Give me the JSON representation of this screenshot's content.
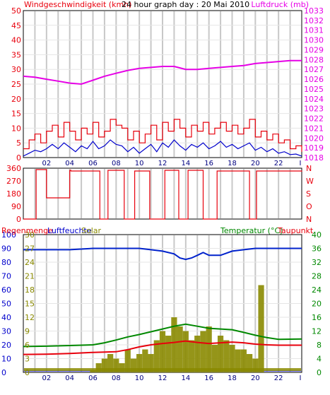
{
  "colors": {
    "wind": "#e8000c",
    "gust_blue": "#0000cc",
    "pressure": "#e600e6",
    "direction": "#e8000c",
    "rain": "#0000ff",
    "humidity": "#0022cc",
    "solar": "#8a8a00",
    "temperature": "#008800",
    "dewpoint": "#e8000c",
    "grid": "#c8c8c8",
    "frame": "#000000"
  },
  "chart_data": [
    {
      "type": "line",
      "title": "24 hour graph day : 20 Mai 2010",
      "left_label": "Windgeschwindigkeit (kmh)",
      "right_label": "Luftdruck (mb)",
      "x_ticks": [
        "02",
        "04",
        "06",
        "08",
        "10",
        "12",
        "14",
        "16",
        "18",
        "20",
        "22"
      ],
      "x_end_tick": "I",
      "xlim": [
        0,
        24
      ],
      "left_axis": {
        "ylim": [
          0,
          50
        ],
        "ticks": [
          "0",
          "5",
          "10",
          "15",
          "20",
          "25",
          "30",
          "35",
          "40",
          "45",
          "50"
        ]
      },
      "right_axis": {
        "ylim": [
          1018,
          1033
        ],
        "ticks": [
          "1018",
          "1019",
          "1020",
          "1021",
          "1022",
          "1023",
          "1024",
          "1025",
          "1026",
          "1027",
          "1028",
          "1029",
          "1030",
          "1031",
          "1032",
          "1033"
        ]
      },
      "series": [
        {
          "key": "wind_max",
          "axis": "left",
          "style": "step",
          "color_key": "wind",
          "x": [
            0,
            0.5,
            1,
            1.5,
            2,
            2.5,
            3,
            3.5,
            4,
            4.5,
            5,
            5.5,
            6,
            6.5,
            7,
            7.5,
            8,
            8.5,
            9,
            9.5,
            10,
            10.5,
            11,
            11.5,
            12,
            12.5,
            13,
            13.5,
            14,
            14.5,
            15,
            15.5,
            16,
            16.5,
            17,
            17.5,
            18,
            18.5,
            19,
            19.5,
            20,
            20.5,
            21,
            21.5,
            22,
            22.5,
            23,
            23.5,
            24
          ],
          "y": [
            3,
            6,
            8,
            5,
            9,
            11,
            7,
            12,
            9,
            6,
            10,
            8,
            12,
            7,
            9,
            13,
            11,
            10,
            6,
            9,
            5,
            8,
            11,
            6,
            12,
            9,
            13,
            10,
            7,
            11,
            9,
            12,
            8,
            10,
            12,
            9,
            11,
            8,
            10,
            13,
            7,
            9,
            6,
            8,
            5,
            6,
            3,
            4,
            2
          ]
        },
        {
          "key": "wind_avg",
          "axis": "left",
          "style": "line",
          "color_key": "gust_blue",
          "x": [
            0,
            0.5,
            1,
            1.5,
            2,
            2.5,
            3,
            3.5,
            4,
            4.5,
            5,
            5.5,
            6,
            6.5,
            7,
            7.5,
            8,
            8.5,
            9,
            9.5,
            10,
            10.5,
            11,
            11.5,
            12,
            12.5,
            13,
            13.5,
            14,
            14.5,
            15,
            15.5,
            16,
            16.5,
            17,
            17.5,
            18,
            18.5,
            19,
            19.5,
            20,
            20.5,
            21,
            21.5,
            22,
            22.5,
            23,
            23.5,
            24
          ],
          "y": [
            0.5,
            1.5,
            2.5,
            2,
            3,
            4.5,
            3,
            5,
            3.5,
            2,
            4,
            3,
            5.5,
            3,
            4,
            6,
            4.5,
            4,
            2,
            3.5,
            1.5,
            3,
            4.5,
            2,
            5,
            3.5,
            6,
            4,
            2.5,
            4.5,
            3.5,
            5,
            3,
            4,
            5.5,
            3.5,
            4.5,
            3,
            4,
            5,
            2.5,
            3.5,
            2,
            3,
            1.5,
            2,
            1,
            1.2,
            0.5
          ]
        },
        {
          "key": "pressure",
          "axis": "right",
          "style": "line",
          "color_key": "pressure",
          "x": [
            0,
            1,
            2,
            3,
            4,
            5,
            6,
            7,
            8,
            9,
            10,
            11,
            12,
            13,
            14,
            15,
            16,
            17,
            18,
            19,
            20,
            21,
            22,
            23,
            24
          ],
          "y": [
            1026.3,
            1026.2,
            1026.0,
            1025.8,
            1025.6,
            1025.5,
            1025.9,
            1026.3,
            1026.6,
            1026.9,
            1027.1,
            1027.2,
            1027.3,
            1027.3,
            1027.0,
            1027.0,
            1027.1,
            1027.2,
            1027.3,
            1027.4,
            1027.6,
            1027.7,
            1027.8,
            1027.9,
            1027.9
          ]
        }
      ]
    },
    {
      "type": "line",
      "left_ticks": [
        "360",
        "270",
        "180",
        "90",
        "0"
      ],
      "right_ticks": [
        "N",
        "W",
        "S",
        "O",
        "N"
      ],
      "ylim": [
        0,
        360
      ],
      "series": [
        {
          "key": "wind_direction",
          "style": "step",
          "color_key": "direction",
          "x": [
            0,
            0.6,
            1.1,
            1.9,
            2.0,
            4.0,
            4.1,
            6.5,
            6.6,
            7.2,
            7.3,
            8.6,
            8.7,
            9.5,
            9.6,
            10.8,
            10.9,
            12.1,
            12.2,
            13.3,
            13.4,
            14.1,
            14.2,
            15.4,
            15.5,
            16.6,
            16.7,
            19.4,
            19.5,
            20.0,
            20.1,
            24
          ],
          "y": [
            0,
            0,
            350,
            350,
            150,
            345,
            340,
            340,
            0,
            0,
            345,
            345,
            0,
            0,
            340,
            340,
            0,
            0,
            345,
            345,
            0,
            0,
            345,
            345,
            0,
            0,
            340,
            340,
            0,
            0,
            340,
            335
          ]
        }
      ]
    },
    {
      "type": "line",
      "left_label_1": "Regenmenge",
      "left_label_2": "Luftfeuchte",
      "left_label_3": "Solar",
      "right_label_1": "Temperatur (°C)",
      "right_label_2": "Taupunkt",
      "x_ticks": [
        "02",
        "04",
        "06",
        "08",
        "10",
        "12",
        "14",
        "16",
        "18",
        "20",
        "22"
      ],
      "x_end_tick": "I",
      "xlim": [
        0,
        24
      ],
      "rain_axis": {
        "ylim": [
          0,
          100
        ],
        "ticks": [
          "0",
          "10",
          "20",
          "30",
          "40",
          "50",
          "60",
          "70",
          "80",
          "90",
          "100"
        ]
      },
      "solar_axis": {
        "ylim": [
          0,
          30
        ],
        "ticks": [
          "0",
          "3",
          "6",
          "9",
          "12",
          "15",
          "18",
          "21",
          "24",
          "27",
          "30"
        ]
      },
      "temp_axis": {
        "ylim": [
          0,
          40
        ],
        "ticks": [
          "0",
          "4",
          "8",
          "12",
          "16",
          "20",
          "24",
          "28",
          "32",
          "36",
          "40"
        ]
      },
      "series": [
        {
          "key": "humidity",
          "axis": "rain",
          "style": "line",
          "color_key": "humidity",
          "x": [
            0,
            2,
            4,
            6,
            8,
            9,
            10,
            11,
            12,
            13,
            13.5,
            14,
            14.5,
            15,
            15.5,
            16,
            17,
            18,
            19,
            20,
            21,
            22,
            24
          ],
          "y": [
            89,
            89,
            89,
            90,
            90,
            90,
            90,
            89,
            88,
            86,
            83,
            82,
            83,
            85,
            87,
            85,
            85,
            88,
            89,
            90,
            90,
            90,
            90
          ]
        },
        {
          "key": "solar",
          "axis": "solar",
          "style": "bars",
          "color_key": "solar",
          "x": [
            6,
            6.5,
            7,
            7.5,
            8,
            8.5,
            9,
            9.5,
            10,
            10.5,
            11,
            11.5,
            12,
            12.5,
            13,
            13.5,
            14,
            14.5,
            15,
            15.5,
            16,
            16.5,
            17,
            17.5,
            18,
            18.5,
            19,
            19.5,
            20,
            20.5
          ],
          "y": [
            0.5,
            2,
            3,
            4,
            3,
            2,
            5,
            3,
            4,
            5,
            4,
            7,
            9,
            8,
            12,
            10,
            9,
            7,
            8,
            9,
            10,
            6,
            8,
            7,
            6,
            5,
            5,
            4,
            3,
            19
          ]
        },
        {
          "key": "temperature",
          "axis": "temp",
          "style": "line",
          "color_key": "temperature",
          "x": [
            0,
            2,
            4,
            6,
            7,
            8,
            9,
            10,
            11,
            12,
            13,
            14,
            15,
            16,
            17,
            18,
            19,
            20,
            21,
            22,
            24
          ],
          "y": [
            7.5,
            7.6,
            7.8,
            8.0,
            8.6,
            9.4,
            10.3,
            11.0,
            11.8,
            12.6,
            13.4,
            14.0,
            13.4,
            12.8,
            12.6,
            12.4,
            11.6,
            10.8,
            10.1,
            9.6,
            9.7
          ]
        },
        {
          "key": "dewpoint",
          "axis": "temp",
          "style": "line",
          "color_key": "dewpoint",
          "x": [
            0,
            2,
            4,
            6,
            8,
            9,
            10,
            11,
            12,
            13,
            14,
            15,
            16,
            17,
            18,
            19,
            20,
            21,
            22,
            24
          ],
          "y": [
            5.2,
            5.3,
            5.5,
            5.8,
            6.0,
            6.6,
            7.4,
            8.0,
            8.4,
            8.7,
            9.1,
            8.7,
            8.4,
            8.6,
            8.8,
            8.6,
            8.2,
            8.0,
            7.9,
            7.9
          ]
        }
      ]
    }
  ]
}
